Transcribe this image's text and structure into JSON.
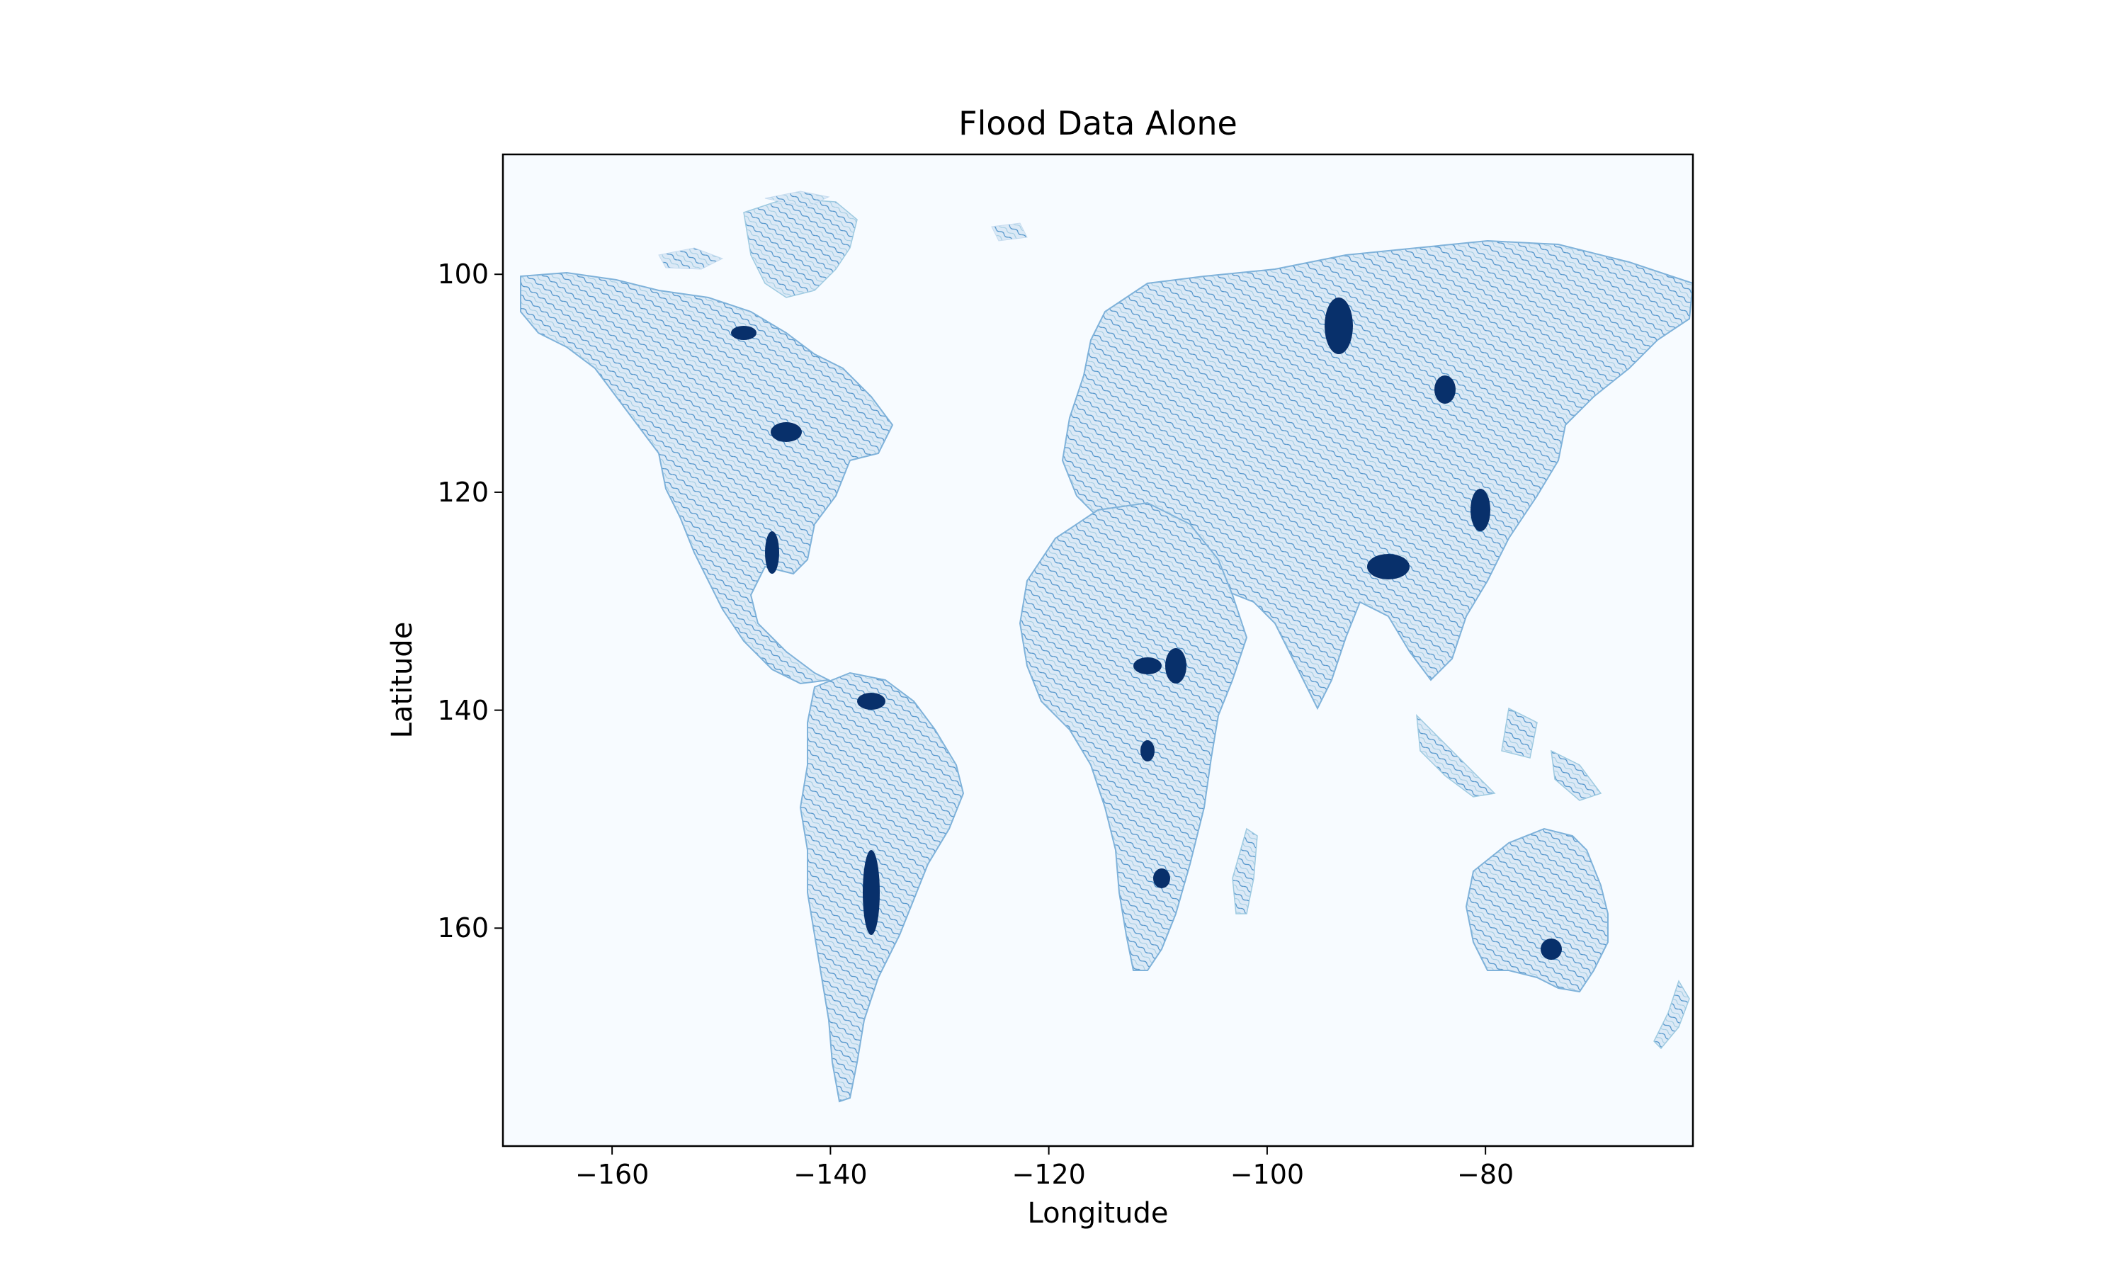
{
  "chart_data": {
    "type": "heatmap",
    "title": "Flood Data Alone",
    "xlabel": "Longitude",
    "ylabel": "Latitude",
    "xlim": [
      -170,
      -61
    ],
    "ylim": [
      180,
      89
    ],
    "x_ticks": [
      -160,
      -140,
      -120,
      -100,
      -80
    ],
    "y_ticks": [
      100,
      120,
      140,
      160
    ],
    "colormap": "Blues",
    "colors": {
      "background": "#f7fbff",
      "light": "#c6dbef",
      "mid": "#6baed6",
      "dark": "#08306b"
    }
  }
}
